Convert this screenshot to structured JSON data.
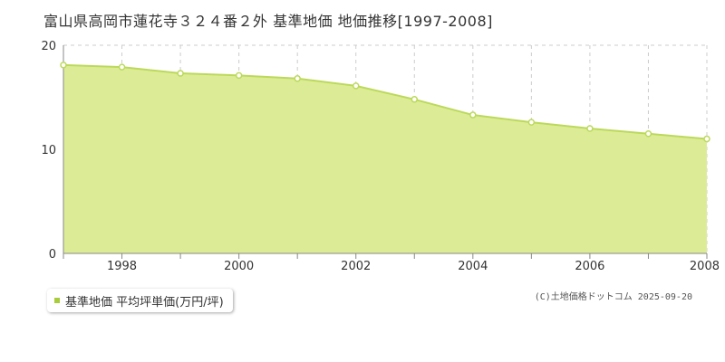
{
  "chart_title": "富山県高岡市蓮花寺３２４番２外 基準地価 地価推移[1997-2008]",
  "colors": {
    "fill": "#dcec96",
    "line": "#bcd95a",
    "grid": "#cccccc",
    "axis": "#888888",
    "legend_marker": "#a8cc3c"
  },
  "legend": {
    "label": "基準地価 平均坪単価(万円/坪)"
  },
  "copyright": "(C)土地価格ドットコム 2025-09-20",
  "chart_data": {
    "type": "area",
    "title": "富山県高岡市蓮花寺３２４番２外 基準地価 地価推移[1997-2008]",
    "x": [
      1997,
      1998,
      1999,
      2000,
      2001,
      2002,
      2003,
      2004,
      2005,
      2006,
      2007,
      2008
    ],
    "series": [
      {
        "name": "基準地価 平均坪単価(万円/坪)",
        "values": [
          18.1,
          17.9,
          17.3,
          17.1,
          16.8,
          16.1,
          14.8,
          13.3,
          12.6,
          12.0,
          11.5,
          11.0
        ]
      }
    ],
    "xticks": [
      1998,
      2000,
      2002,
      2004,
      2006,
      2008
    ],
    "yticks": [
      0,
      10,
      20
    ],
    "xlim": [
      1997,
      2008
    ],
    "ylim": [
      0,
      20
    ],
    "grid": true,
    "legend_position": "bottom-left"
  }
}
